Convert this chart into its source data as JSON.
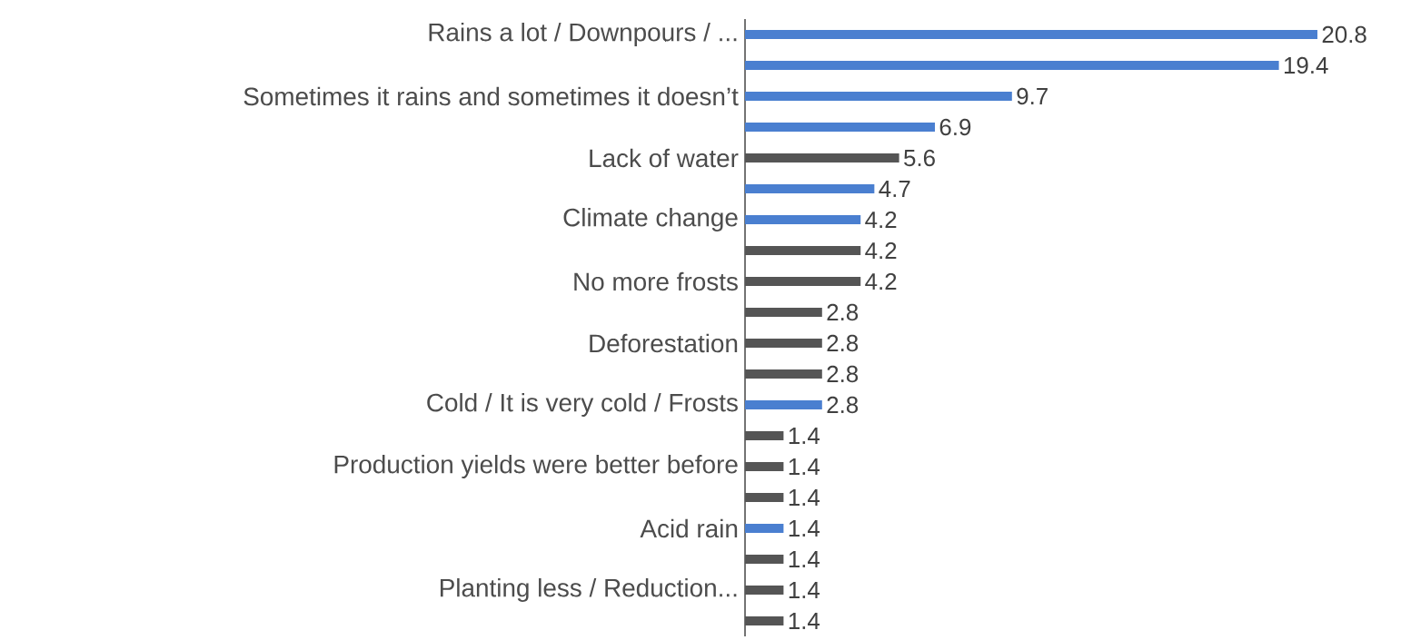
{
  "chart_data": {
    "type": "bar",
    "orientation": "horizontal",
    "data_labels": true,
    "categories": [
      "Rains a lot / Downpours / ...",
      null,
      "Sometimes it rains and sometimes it doesn’t",
      null,
      "Lack of water",
      null,
      "Climate change",
      null,
      "No more frosts",
      null,
      "Deforestation",
      null,
      "Cold / It is very cold / Frosts",
      null,
      "Production yields were better before",
      null,
      "Acid rain",
      null,
      "Planting less / Reduction...",
      null
    ],
    "values": [
      20.8,
      19.4,
      9.7,
      6.9,
      5.6,
      4.7,
      4.2,
      4.2,
      4.2,
      2.8,
      2.8,
      2.8,
      2.8,
      1.4,
      1.4,
      1.4,
      1.4,
      1.4,
      1.4,
      1.4
    ],
    "colors": [
      "#4a7fd0",
      "#4a7fd0",
      "#4a7fd0",
      "#4a7fd0",
      "#555555",
      "#4a7fd0",
      "#4a7fd0",
      "#555555",
      "#555555",
      "#555555",
      "#555555",
      "#555555",
      "#4a7fd0",
      "#555555",
      "#555555",
      "#555555",
      "#4a7fd0",
      "#555555",
      "#555555",
      "#555555"
    ]
  }
}
